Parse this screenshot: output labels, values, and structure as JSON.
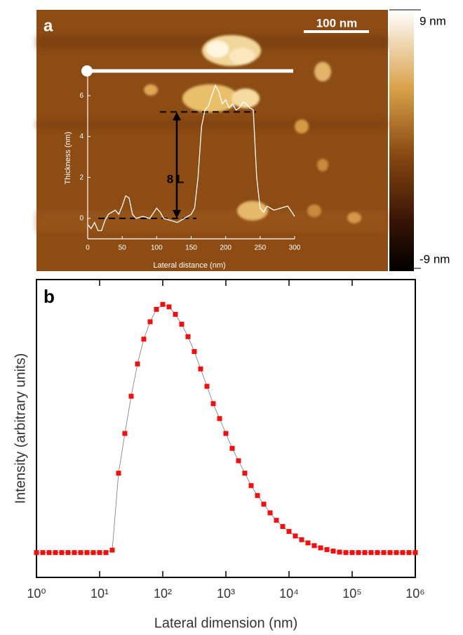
{
  "chart_data": [
    {
      "type": "line",
      "panel_label": "a",
      "scale_bar_label": "100 nm",
      "annotation": "8 L",
      "xlabel": "Lateral distance (nm)",
      "ylabel": "Thickness (nm)",
      "color": "#ffffff",
      "x": [
        0,
        5,
        10,
        15,
        20,
        25,
        30,
        35,
        40,
        45,
        50,
        55,
        60,
        65,
        70,
        80,
        90,
        100,
        105,
        110,
        120,
        130,
        140,
        150,
        155,
        160,
        165,
        170,
        175,
        180,
        185,
        190,
        195,
        200,
        205,
        210,
        215,
        220,
        225,
        230,
        235,
        240,
        245,
        250,
        255,
        260,
        270,
        280,
        290,
        300
      ],
      "values": [
        -0.3,
        -0.5,
        -0.2,
        -0.6,
        -0.6,
        -0.1,
        0.2,
        0.3,
        0.4,
        0.2,
        0.6,
        1.1,
        1.0,
        0.2,
        0,
        0.1,
        0,
        0.5,
        0.3,
        0,
        -0.1,
        -0.2,
        0,
        0.2,
        0.5,
        2,
        4.5,
        5.3,
        5.5,
        6.0,
        6.5,
        6.2,
        5.6,
        5.8,
        5.4,
        5.6,
        5.3,
        5.4,
        5.7,
        5.6,
        5.4,
        5.3,
        2,
        0.5,
        0.3,
        0.6,
        0.4,
        0.5,
        0.6,
        0.1
      ],
      "reference_lines": [
        0,
        5.2
      ],
      "xlim": [
        0,
        300
      ],
      "xticks": [
        0,
        50,
        100,
        150,
        200,
        250,
        300
      ],
      "ylim": [
        -1,
        7
      ],
      "yticks": [
        0,
        2,
        4,
        6
      ],
      "colorbar": {
        "clim": [
          -9,
          9
        ],
        "ticks": [
          {
            "value": 9,
            "label": "9 nm"
          },
          {
            "value": -9,
            "label": "-9 nm"
          }
        ]
      }
    },
    {
      "type": "scatter",
      "panel_label": "b",
      "xlabel": "Lateral dimension (nm)",
      "ylabel": "Intensity (arbitrary units)",
      "color": "#ee1111",
      "log_x": true,
      "x": [
        1,
        1.259,
        1.585,
        1.995,
        2.512,
        3.162,
        3.981,
        5.012,
        6.31,
        7.943,
        10,
        12.59,
        15.85,
        19.95,
        25.12,
        31.62,
        39.81,
        50.12,
        63.1,
        79.43,
        100,
        125.9,
        158.5,
        199.5,
        251.2,
        316.2,
        398.1,
        501.2,
        631,
        794.3,
        1000,
        1259,
        1585,
        1995,
        2512,
        3162,
        3981,
        5012,
        6310,
        7943,
        10000,
        12590,
        15850,
        19950,
        25120,
        31620,
        39810,
        50120,
        63100,
        79430,
        100000,
        125900,
        158500,
        199500,
        251200,
        316200,
        398100,
        501200,
        631000,
        794300,
        1000000
      ],
      "values": [
        0,
        0,
        0,
        0,
        0,
        0,
        0,
        0,
        0,
        0,
        0,
        0,
        0.01,
        0.32,
        0.48,
        0.63,
        0.76,
        0.86,
        0.93,
        0.98,
        1.0,
        0.99,
        0.96,
        0.92,
        0.87,
        0.81,
        0.74,
        0.67,
        0.6,
        0.54,
        0.48,
        0.42,
        0.37,
        0.32,
        0.27,
        0.23,
        0.195,
        0.16,
        0.13,
        0.105,
        0.085,
        0.067,
        0.052,
        0.039,
        0.028,
        0.019,
        0.012,
        0.006,
        0.002,
        0,
        0,
        0,
        0,
        0,
        0,
        0,
        0,
        0,
        0,
        0,
        0
      ],
      "xlim": [
        1,
        1000000
      ],
      "xticks": [
        {
          "value": 1,
          "label": "10⁰"
        },
        {
          "value": 10,
          "label": "10¹"
        },
        {
          "value": 100,
          "label": "10²"
        },
        {
          "value": 1000,
          "label": "10³"
        },
        {
          "value": 10000,
          "label": "10⁴"
        },
        {
          "value": 100000,
          "label": "10⁵"
        },
        {
          "value": 1000000,
          "label": "10⁶"
        }
      ],
      "ylim": [
        -0.1,
        1.1
      ]
    }
  ]
}
